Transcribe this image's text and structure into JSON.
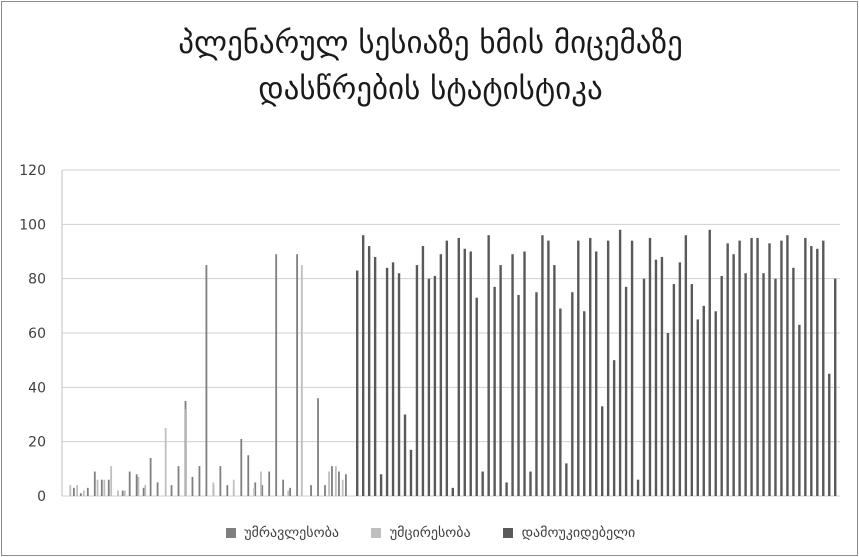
{
  "chart_data": {
    "type": "bar",
    "title_lines": [
      "პლენარულ სესიაზე ხმის მიცემაზე",
      "დასწრების სტატისტიკა"
    ],
    "ylim": [
      0,
      120
    ],
    "yticks": [
      "0",
      "20",
      "40",
      "60",
      "80",
      "100",
      "120"
    ],
    "grid": true,
    "legend_position": "bottom",
    "colors": [
      "#7f7f7f",
      "#bfbfbf",
      "#595959"
    ],
    "series": [
      {
        "name": "უმრავლესობა",
        "values": [
          0,
          3,
          1,
          3,
          9,
          6,
          6,
          0,
          2,
          9,
          8,
          3,
          14,
          5,
          0,
          4,
          11,
          35,
          7,
          11,
          85,
          4,
          11,
          4,
          0,
          21,
          15,
          5,
          4,
          9,
          89,
          6,
          3,
          89,
          0,
          4,
          36,
          4,
          11,
          9,
          8
        ]
      },
      {
        "name": "უმცირესობა",
        "values": [
          4,
          4,
          2,
          0,
          6,
          6,
          11,
          2,
          2,
          0,
          7,
          4,
          0,
          0,
          25,
          0,
          0,
          32,
          0,
          0,
          0,
          5,
          0,
          0,
          6,
          0,
          0,
          3,
          9,
          0,
          0,
          0,
          2,
          0,
          85,
          0,
          0,
          0,
          9,
          11,
          6,
          0
        ]
      },
      {
        "name": "დამოუკიდებელი",
        "values": [
          83,
          96,
          92,
          88,
          8,
          84,
          86,
          82,
          30,
          17,
          85,
          92,
          80,
          81,
          89,
          94,
          3,
          95,
          91,
          90,
          73,
          9,
          96,
          77,
          85,
          5,
          89,
          74,
          90,
          9,
          75,
          96,
          94,
          85,
          69,
          12,
          75,
          94,
          68,
          95,
          90,
          33,
          94,
          50,
          98,
          77,
          94,
          6,
          80,
          95,
          87,
          88,
          60,
          78,
          86,
          96,
          78,
          65,
          70,
          98,
          68,
          81,
          93,
          89,
          94,
          82,
          95,
          95,
          82,
          93,
          80,
          94,
          96,
          84,
          63,
          95,
          92,
          91,
          94,
          45,
          80
        ]
      }
    ]
  }
}
